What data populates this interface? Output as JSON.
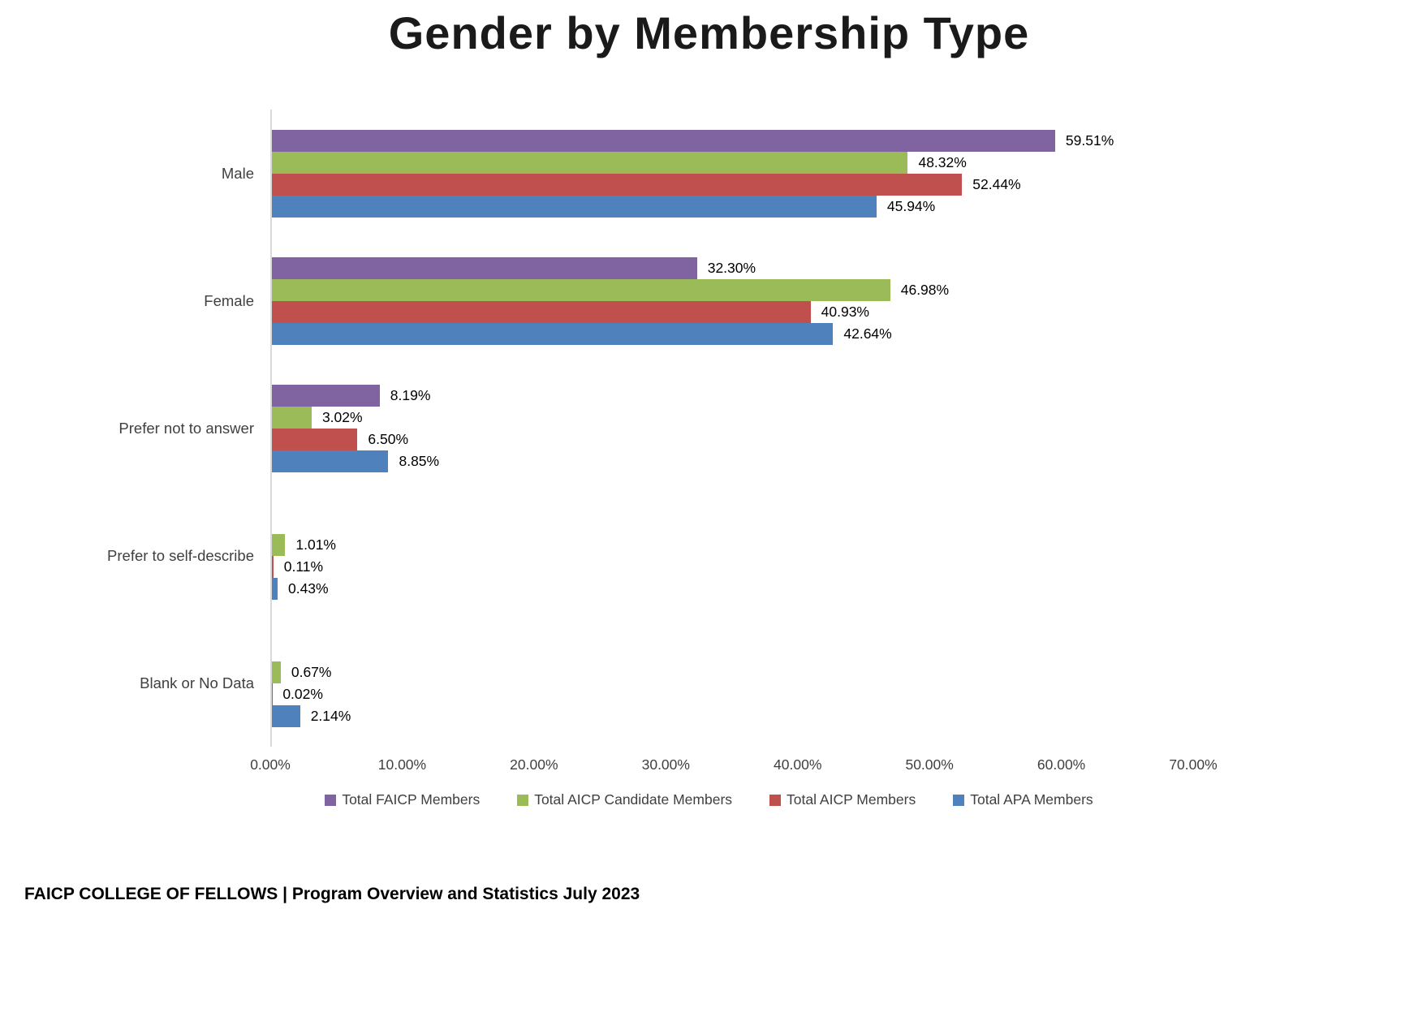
{
  "chart_data": {
    "type": "bar",
    "orientation": "horizontal",
    "title": "Gender by Membership Type",
    "categories": [
      "Male",
      "Female",
      "Prefer not to answer",
      "Prefer to self-describe",
      "Blank or No Data"
    ],
    "series": [
      {
        "name": "Total FAICP Members",
        "color": "#8064A2",
        "values": [
          59.51,
          32.3,
          8.19,
          null,
          null
        ]
      },
      {
        "name": "Total AICP Candidate Members",
        "color": "#9BBB59",
        "values": [
          48.32,
          46.98,
          3.02,
          1.01,
          0.67
        ]
      },
      {
        "name": "Total AICP Members",
        "color": "#C0504D",
        "values": [
          52.44,
          40.93,
          6.5,
          0.11,
          0.02
        ]
      },
      {
        "name": "Total APA Members",
        "color": "#4F81BD",
        "values": [
          45.94,
          42.64,
          8.85,
          0.43,
          2.14
        ]
      }
    ],
    "value_label_format": "percent_2dp",
    "x_ticks": [
      "0.00%",
      "10.00%",
      "20.00%",
      "30.00%",
      "40.00%",
      "50.00%",
      "60.00%",
      "70.00%"
    ],
    "xlim": [
      0,
      70
    ],
    "grid": false,
    "legend_position": "bottom"
  },
  "footer": {
    "text": "FAICP COLLEGE OF FELLOWS | Program Overview and Statistics July 2023"
  }
}
